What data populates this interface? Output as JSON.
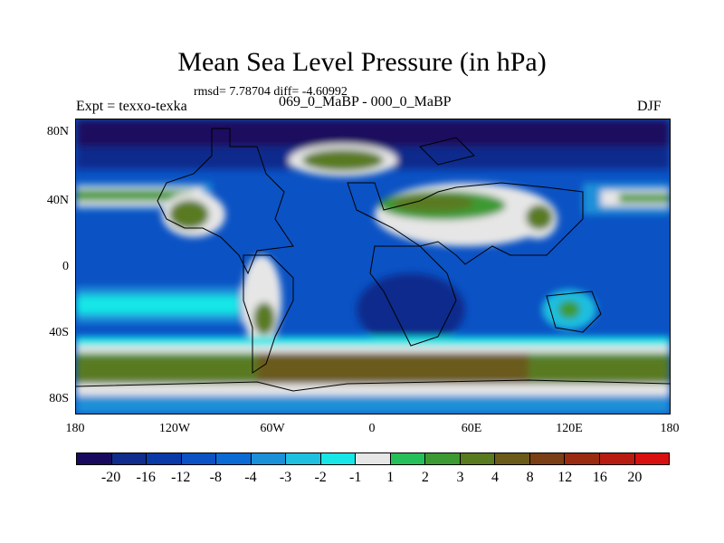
{
  "title": "Mean Sea Level Pressure (in hPa)",
  "stats": "rmsd= 7.78704 diff= -4.60992",
  "left_label": "Expt = texxo-texka",
  "subtitle": "069_0_MaBP - 000_0_MaBP",
  "season": "DJF",
  "lat_ticks": [
    "80N",
    "40N",
    "0",
    "40S",
    "80S"
  ],
  "lon_ticks": [
    "180",
    "120W",
    "60W",
    "0",
    "60E",
    "120E",
    "180"
  ],
  "colorbar": {
    "colors": [
      "#1a0a5e",
      "#102c8c",
      "#0a3aa8",
      "#0b52c4",
      "#0c6ad4",
      "#1a90d8",
      "#1fbfe0",
      "#18e6e6",
      "#e6e6e6",
      "#25c05a",
      "#3d9a32",
      "#5a7a20",
      "#6b5a1a",
      "#7a3f14",
      "#9a2a10",
      "#b81c10",
      "#d91010"
    ],
    "labels": [
      "-20",
      "-16",
      "-12",
      "-8",
      "-4",
      "-3",
      "-2",
      "-1",
      "1",
      "2",
      "3",
      "4",
      "8",
      "12",
      "16",
      "20"
    ]
  }
}
